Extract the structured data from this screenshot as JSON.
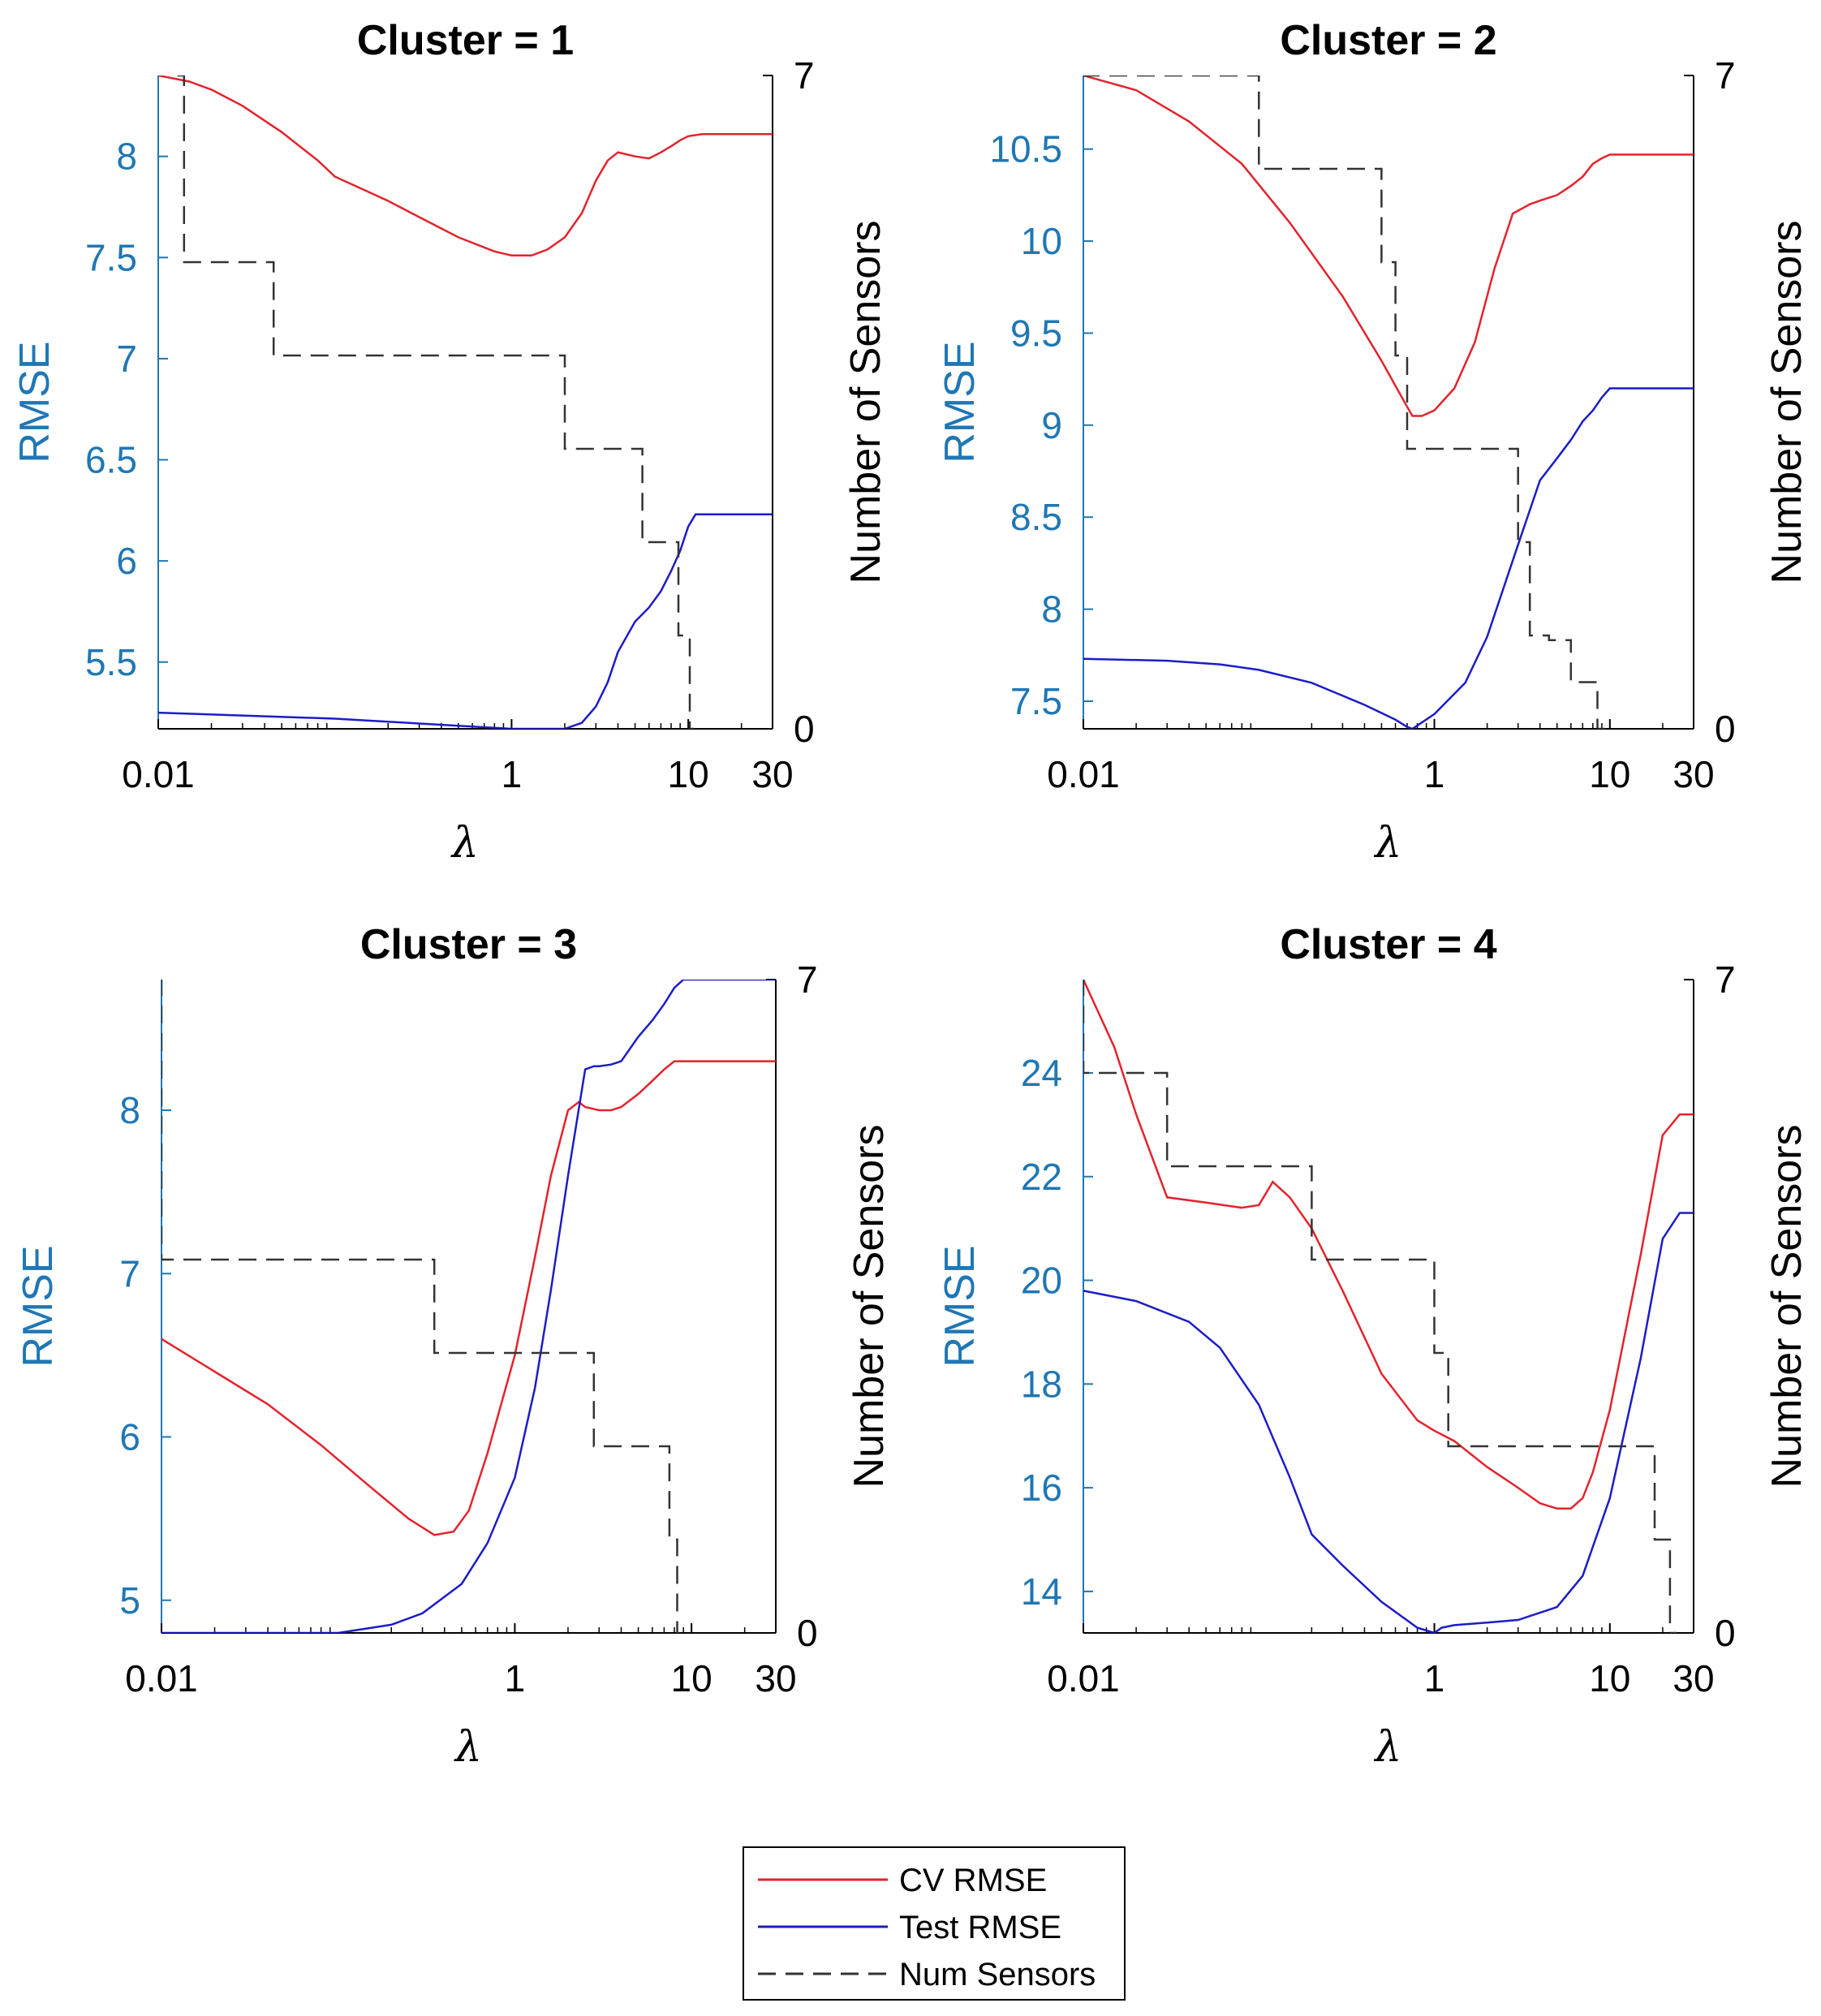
{
  "figure": {
    "legend": [
      {
        "label": "CV RMSE",
        "color": "#e3232c",
        "dash": "none"
      },
      {
        "label": "Test RMSE",
        "color": "#1c1cc8",
        "dash": "none"
      },
      {
        "label": "Num Sensors",
        "color": "#333333",
        "dash": "dashed"
      }
    ]
  },
  "chart_data": [
    {
      "type": "line",
      "title": "Cluster = 1",
      "xlabel": "λ",
      "ylabel_left": "RMSE",
      "ylabel_right": "Number of Sensors",
      "xscale": "log",
      "xlim": [
        0.01,
        30
      ],
      "xticks": [
        {
          "v": 0.01,
          "label": "0.01"
        },
        {
          "v": 1,
          "label": "1"
        },
        {
          "v": 10,
          "label": "10"
        },
        {
          "v": 30,
          "label": "30"
        }
      ],
      "ylim_left": [
        5.17,
        8.4
      ],
      "yticks_left": [
        {
          "v": 5.5,
          "label": "5.5"
        },
        {
          "v": 6,
          "label": "6"
        },
        {
          "v": 6.5,
          "label": "6.5"
        },
        {
          "v": 7,
          "label": "7"
        },
        {
          "v": 7.5,
          "label": "7.5"
        },
        {
          "v": 8,
          "label": "8"
        }
      ],
      "ylim_right": [
        0,
        7
      ],
      "yticks_right": [
        {
          "v": 0,
          "label": "0"
        },
        {
          "v": 7,
          "label": "7"
        }
      ],
      "series": [
        {
          "name": "CV RMSE",
          "axis": "left",
          "x": [
            0.01,
            0.015,
            0.02,
            0.03,
            0.05,
            0.08,
            0.1,
            0.2,
            0.3,
            0.5,
            0.8,
            1.0,
            1.3,
            1.6,
            2.0,
            2.5,
            3.0,
            3.5,
            4.0,
            5.0,
            6.0,
            7.0,
            8.0,
            9.0,
            10.0,
            12.0,
            30.0
          ],
          "y": [
            8.4,
            8.37,
            8.33,
            8.25,
            8.12,
            7.98,
            7.9,
            7.78,
            7.7,
            7.6,
            7.53,
            7.51,
            7.51,
            7.54,
            7.6,
            7.72,
            7.88,
            7.98,
            8.02,
            8.0,
            7.99,
            8.02,
            8.05,
            8.08,
            8.1,
            8.11,
            8.11
          ]
        },
        {
          "name": "Test RMSE",
          "axis": "left",
          "x": [
            0.01,
            0.1,
            1.0,
            2.0,
            2.5,
            3.0,
            3.5,
            4.0,
            5.0,
            6.0,
            7.0,
            8.0,
            9.0,
            10.0,
            11.0,
            30.0
          ],
          "y": [
            5.25,
            5.22,
            5.17,
            5.17,
            5.2,
            5.28,
            5.4,
            5.55,
            5.7,
            5.77,
            5.85,
            5.95,
            6.05,
            6.17,
            6.23,
            6.23
          ]
        },
        {
          "name": "Num Sensors",
          "axis": "right",
          "step": true,
          "x": [
            0.013,
            0.014,
            0.045,
            2.0,
            5.5,
            8.8,
            10.2,
            10.8
          ],
          "y": [
            7,
            5,
            4,
            3,
            2,
            1,
            0,
            0
          ]
        }
      ]
    },
    {
      "type": "line",
      "title": "Cluster = 2",
      "xlabel": "λ",
      "ylabel_left": "RMSE",
      "ylabel_right": "Number of Sensors",
      "xscale": "log",
      "xlim": [
        0.01,
        30
      ],
      "xticks": [
        {
          "v": 0.01,
          "label": "0.01"
        },
        {
          "v": 1,
          "label": "1"
        },
        {
          "v": 10,
          "label": "10"
        },
        {
          "v": 30,
          "label": "30"
        }
      ],
      "ylim_left": [
        7.35,
        10.9
      ],
      "yticks_left": [
        {
          "v": 7.5,
          "label": "7.5"
        },
        {
          "v": 8,
          "label": "8"
        },
        {
          "v": 8.5,
          "label": "8.5"
        },
        {
          "v": 9,
          "label": "9"
        },
        {
          "v": 9.5,
          "label": "9.5"
        },
        {
          "v": 10,
          "label": "10"
        },
        {
          "v": 10.5,
          "label": "10.5"
        }
      ],
      "ylim_right": [
        0,
        7
      ],
      "yticks_right": [
        {
          "v": 0,
          "label": "0"
        },
        {
          "v": 7,
          "label": "7"
        }
      ],
      "series": [
        {
          "name": "CV RMSE",
          "axis": "left",
          "x": [
            0.01,
            0.02,
            0.04,
            0.08,
            0.15,
            0.3,
            0.5,
            0.7,
            0.75,
            0.85,
            1.0,
            1.3,
            1.7,
            2.2,
            2.8,
            3.5,
            4.0,
            5.0,
            6.0,
            7.0,
            8.0,
            9.0,
            10.0,
            30.0
          ],
          "y": [
            10.9,
            10.82,
            10.65,
            10.42,
            10.1,
            9.7,
            9.35,
            9.1,
            9.05,
            9.05,
            9.08,
            9.2,
            9.45,
            9.85,
            10.15,
            10.2,
            10.22,
            10.25,
            10.3,
            10.35,
            10.42,
            10.45,
            10.47,
            10.47
          ]
        },
        {
          "name": "Test RMSE",
          "axis": "left",
          "x": [
            0.01,
            0.03,
            0.06,
            0.1,
            0.2,
            0.4,
            0.6,
            0.7,
            0.75,
            1.0,
            1.5,
            2.0,
            3.0,
            4.0,
            5.0,
            6.0,
            7.0,
            8.0,
            9.0,
            10.0,
            30.0
          ],
          "y": [
            7.73,
            7.72,
            7.7,
            7.67,
            7.6,
            7.48,
            7.4,
            7.36,
            7.35,
            7.43,
            7.6,
            7.85,
            8.35,
            8.7,
            8.82,
            8.92,
            9.02,
            9.08,
            9.15,
            9.2,
            9.2
          ]
        },
        {
          "name": "Num Sensors",
          "axis": "right",
          "step": true,
          "x": [
            0.01,
            0.1,
            0.5,
            0.6,
            0.7,
            3.0,
            3.5,
            4.5,
            6.0,
            8.5,
            9.5
          ],
          "y": [
            7,
            6,
            5,
            4,
            3,
            2,
            1,
            0.95,
            0.5,
            0,
            0
          ]
        }
      ]
    },
    {
      "type": "line",
      "title": "Cluster = 3",
      "xlabel": "λ",
      "ylabel_left": "RMSE",
      "ylabel_right": "Number of Sensors",
      "xscale": "log",
      "xlim": [
        0.01,
        30
      ],
      "xticks": [
        {
          "v": 0.01,
          "label": "0.01"
        },
        {
          "v": 1,
          "label": "1"
        },
        {
          "v": 10,
          "label": "10"
        },
        {
          "v": 30,
          "label": "30"
        }
      ],
      "ylim_left": [
        4.8,
        8.8
      ],
      "yticks_left": [
        {
          "v": 5,
          "label": "5"
        },
        {
          "v": 6,
          "label": "6"
        },
        {
          "v": 7,
          "label": "7"
        },
        {
          "v": 8,
          "label": "8"
        }
      ],
      "ylim_right": [
        0,
        7
      ],
      "yticks_right": [
        {
          "v": 0,
          "label": "0"
        },
        {
          "v": 7,
          "label": "7"
        }
      ],
      "series": [
        {
          "name": "CV RMSE",
          "axis": "left",
          "x": [
            0.01,
            0.02,
            0.04,
            0.08,
            0.15,
            0.25,
            0.35,
            0.45,
            0.55,
            0.7,
            1.0,
            1.3,
            1.6,
            2.0,
            2.3,
            2.5,
            3.0,
            3.5,
            4.0,
            5.0,
            6.0,
            7.0,
            8.0,
            30.0
          ],
          "y": [
            6.6,
            6.4,
            6.2,
            5.95,
            5.7,
            5.5,
            5.4,
            5.42,
            5.55,
            5.9,
            6.5,
            7.1,
            7.6,
            8.0,
            8.05,
            8.02,
            8.0,
            8.0,
            8.02,
            8.1,
            8.18,
            8.25,
            8.3,
            8.3
          ]
        },
        {
          "name": "Test RMSE",
          "axis": "left",
          "x": [
            0.01,
            0.05,
            0.1,
            0.2,
            0.3,
            0.5,
            0.7,
            1.0,
            1.3,
            1.6,
            2.0,
            2.5,
            2.8,
            3.0,
            3.5,
            4.0,
            5.0,
            6.0,
            7.0,
            8.0,
            9.0,
            10.0,
            30.0
          ],
          "y": [
            4.8,
            4.8,
            4.8,
            4.85,
            4.92,
            5.1,
            5.35,
            5.75,
            6.3,
            6.9,
            7.6,
            8.25,
            8.27,
            8.27,
            8.28,
            8.3,
            8.45,
            8.55,
            8.65,
            8.75,
            8.8,
            8.8,
            8.8
          ]
        },
        {
          "name": "Num Sensors",
          "axis": "right",
          "step": true,
          "x": [
            0.01,
            0.35,
            2.8,
            7.5,
            8.3,
            8.5
          ],
          "y": [
            4,
            3,
            2,
            1,
            0,
            0
          ]
        }
      ]
    },
    {
      "type": "line",
      "title": "Cluster = 4",
      "xlabel": "λ",
      "ylabel_left": "RMSE",
      "ylabel_right": "Number of Sensors",
      "xscale": "log",
      "xlim": [
        0.01,
        30
      ],
      "xticks": [
        {
          "v": 0.01,
          "label": "0.01"
        },
        {
          "v": 1,
          "label": "1"
        },
        {
          "v": 10,
          "label": "10"
        },
        {
          "v": 30,
          "label": "30"
        }
      ],
      "ylim_left": [
        13.2,
        25.8
      ],
      "yticks_left": [
        {
          "v": 14,
          "label": "14"
        },
        {
          "v": 16,
          "label": "16"
        },
        {
          "v": 18,
          "label": "18"
        },
        {
          "v": 20,
          "label": "20"
        },
        {
          "v": 22,
          "label": "22"
        },
        {
          "v": 24,
          "label": "24"
        }
      ],
      "ylim_right": [
        0,
        7
      ],
      "yticks_right": [
        {
          "v": 0,
          "label": "0"
        },
        {
          "v": 7,
          "label": "7"
        }
      ],
      "series": [
        {
          "name": "CV RMSE",
          "axis": "left",
          "x": [
            0.01,
            0.015,
            0.02,
            0.03,
            0.05,
            0.08,
            0.1,
            0.12,
            0.15,
            0.2,
            0.3,
            0.5,
            0.8,
            1.0,
            1.3,
            2.0,
            3.0,
            4.0,
            5.0,
            6.0,
            7.0,
            8.0,
            10.0,
            15.0,
            20.0,
            25.0,
            30.0
          ],
          "y": [
            25.8,
            24.5,
            23.2,
            21.6,
            21.5,
            21.4,
            21.45,
            21.9,
            21.6,
            21.0,
            19.8,
            18.2,
            17.3,
            17.1,
            16.9,
            16.4,
            16.0,
            15.7,
            15.6,
            15.6,
            15.8,
            16.3,
            17.5,
            20.5,
            22.8,
            23.2,
            23.2
          ]
        },
        {
          "name": "Test RMSE",
          "axis": "left",
          "x": [
            0.01,
            0.02,
            0.04,
            0.06,
            0.1,
            0.15,
            0.2,
            0.3,
            0.5,
            0.8,
            1.0,
            1.1,
            1.3,
            2.0,
            3.0,
            5.0,
            7.0,
            10.0,
            15.0,
            20.0,
            25.0,
            30.0
          ],
          "y": [
            19.8,
            19.6,
            19.2,
            18.7,
            17.6,
            16.2,
            15.1,
            14.5,
            13.8,
            13.3,
            13.2,
            13.3,
            13.35,
            13.4,
            13.45,
            13.7,
            14.3,
            15.8,
            18.5,
            20.8,
            21.3,
            21.3
          ]
        },
        {
          "name": "Num Sensors",
          "axis": "right",
          "step": true,
          "x": [
            0.01,
            0.03,
            0.2,
            1.0,
            1.2,
            18.0,
            20.0,
            22.0,
            24.0
          ],
          "y": [
            6,
            5,
            4,
            3,
            2,
            1,
            1,
            0,
            0
          ]
        }
      ]
    }
  ]
}
